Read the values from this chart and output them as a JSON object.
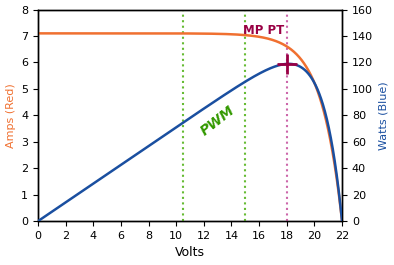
{
  "xlabel": "Volts",
  "ylabel_left": "Amps (Red)",
  "ylabel_right": "Watts (Blue)",
  "xlim": [
    0,
    22
  ],
  "ylim_left": [
    0,
    8
  ],
  "ylim_right": [
    0,
    160
  ],
  "xticks": [
    0,
    2,
    4,
    6,
    8,
    10,
    12,
    14,
    16,
    18,
    20,
    22
  ],
  "yticks_left": [
    0,
    1,
    2,
    3,
    4,
    5,
    6,
    7,
    8
  ],
  "yticks_right": [
    0,
    20,
    40,
    60,
    80,
    100,
    120,
    140,
    160
  ],
  "isc": 7.1,
  "voc": 22.0,
  "vmp": 18.0,
  "imp": 6.1,
  "pwm_v1": 10.5,
  "pwm_v2": 15.0,
  "mppt_v": 18.0,
  "curve_color_red": "#f07030",
  "curve_color_blue": "#1a4fa0",
  "pwm_line_color": "#66bb33",
  "mppt_line_color": "#cc66aa",
  "mppt_crosshair_color": "#990044",
  "pwm_label_color": "#339900",
  "mppt_label_color": "#990044",
  "background_color": "#ffffff",
  "border_color": "#000000",
  "ylabel_left_color": "#f07030",
  "ylabel_right_color": "#1a4fa0"
}
